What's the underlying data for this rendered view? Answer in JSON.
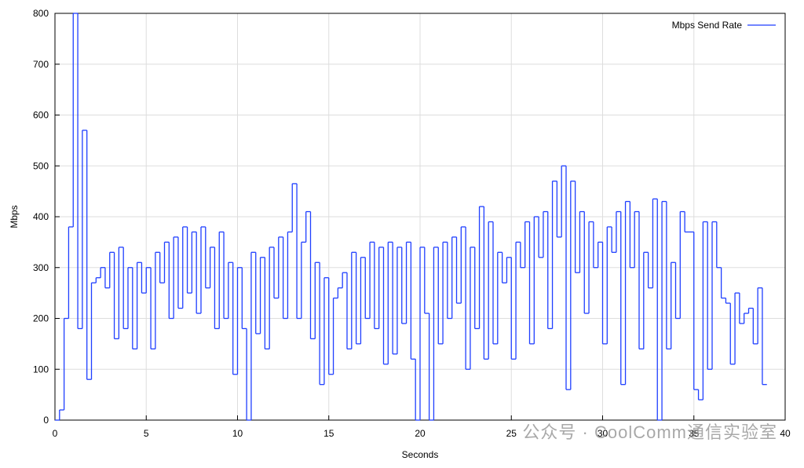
{
  "chart_data": {
    "type": "line",
    "xlabel": "Seconds",
    "ylabel": "Mbps",
    "xlim": [
      0,
      40
    ],
    "ylim": [
      0,
      800
    ],
    "xticks": [
      0,
      5,
      10,
      15,
      20,
      25,
      30,
      35,
      40
    ],
    "yticks": [
      0,
      100,
      200,
      300,
      400,
      500,
      600,
      700,
      800
    ],
    "grid": true,
    "legend": "top-right",
    "step": true,
    "watermark": "公众号 · CoolComm通信实验室",
    "x": [
      0,
      0.25,
      0.5,
      0.75,
      1,
      1.25,
      1.5,
      1.75,
      2,
      2.25,
      2.5,
      2.75,
      3,
      3.25,
      3.5,
      3.75,
      4,
      4.25,
      4.5,
      4.75,
      5,
      5.25,
      5.5,
      5.75,
      6,
      6.25,
      6.5,
      6.75,
      7,
      7.25,
      7.5,
      7.75,
      8,
      8.25,
      8.5,
      8.75,
      9,
      9.25,
      9.5,
      9.75,
      10,
      10.25,
      10.5,
      10.75,
      11,
      11.25,
      11.5,
      11.75,
      12,
      12.25,
      12.5,
      12.75,
      13,
      13.25,
      13.5,
      13.75,
      14,
      14.25,
      14.5,
      14.75,
      15,
      15.25,
      15.5,
      15.75,
      16,
      16.25,
      16.5,
      16.75,
      17,
      17.25,
      17.5,
      17.75,
      18,
      18.25,
      18.5,
      18.75,
      19,
      19.25,
      19.5,
      19.75,
      20,
      20.25,
      20.5,
      20.75,
      21,
      21.25,
      21.5,
      21.75,
      22,
      22.25,
      22.5,
      22.75,
      23,
      23.25,
      23.5,
      23.75,
      24,
      24.25,
      24.5,
      24.75,
      25,
      25.25,
      25.5,
      25.75,
      26,
      26.25,
      26.5,
      26.75,
      27,
      27.25,
      27.5,
      27.75,
      28,
      28.25,
      28.5,
      28.75,
      29,
      29.25,
      29.5,
      29.75,
      30,
      30.25,
      30.5,
      30.75,
      31,
      31.25,
      31.5,
      31.75,
      32,
      32.25,
      32.5,
      32.75,
      33,
      33.25,
      33.5,
      33.75,
      34,
      34.25,
      34.5,
      34.75,
      35,
      35.25,
      35.5,
      35.75,
      36,
      36.25,
      36.5,
      36.75,
      37,
      37.25,
      37.5,
      37.75,
      38,
      38.25,
      38.5,
      38.75
    ],
    "series": [
      {
        "name": "Mbps Send Rate",
        "color": "#1f3fff",
        "values": [
          0,
          20,
          200,
          380,
          800,
          180,
          570,
          80,
          270,
          280,
          300,
          260,
          330,
          160,
          340,
          180,
          300,
          140,
          310,
          250,
          300,
          140,
          330,
          270,
          350,
          200,
          360,
          220,
          380,
          250,
          370,
          210,
          380,
          260,
          340,
          180,
          370,
          200,
          310,
          90,
          300,
          180,
          0,
          330,
          170,
          320,
          140,
          340,
          240,
          360,
          200,
          370,
          465,
          200,
          350,
          410,
          160,
          310,
          70,
          280,
          90,
          240,
          260,
          290,
          140,
          330,
          150,
          320,
          200,
          350,
          180,
          340,
          110,
          350,
          130,
          340,
          190,
          350,
          120,
          0,
          340,
          210,
          0,
          340,
          150,
          350,
          200,
          360,
          230,
          380,
          100,
          340,
          180,
          420,
          120,
          390,
          150,
          330,
          270,
          320,
          120,
          350,
          300,
          390,
          150,
          400,
          320,
          410,
          180,
          470,
          360,
          500,
          60,
          470,
          290,
          410,
          210,
          390,
          300,
          350,
          150,
          380,
          330,
          410,
          70,
          430,
          300,
          410,
          140,
          330,
          260,
          435,
          0,
          430,
          140,
          310,
          200,
          410,
          370,
          370,
          60,
          40,
          390,
          100,
          390,
          300,
          240,
          230,
          110,
          250,
          190,
          210,
          220,
          150,
          260,
          70
        ]
      }
    ]
  }
}
